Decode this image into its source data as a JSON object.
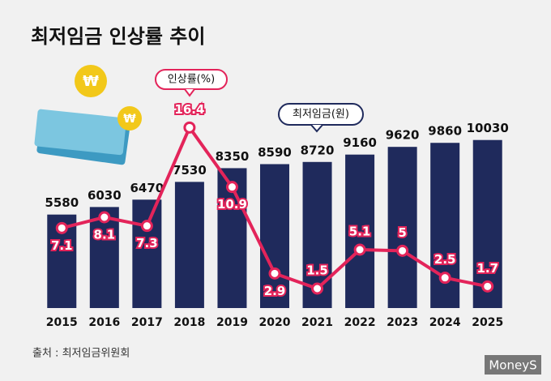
{
  "chart_data": {
    "type": "bar_line",
    "title": "최저임금 인상률 추이",
    "source": "출처 : 최저임금위원회",
    "logo": "MoneyS",
    "categories": [
      "2015",
      "2016",
      "2017",
      "2018",
      "2019",
      "2020",
      "2021",
      "2022",
      "2023",
      "2024",
      "2025"
    ],
    "series": [
      {
        "name": "최저임금(원)",
        "type": "bar",
        "color": "#1f2a5c",
        "values": [
          5580,
          6030,
          6470,
          7530,
          8350,
          8590,
          8720,
          9160,
          9620,
          9860,
          10030
        ]
      },
      {
        "name": "인상률(%)",
        "type": "line",
        "axis": "y2",
        "color": "#e3245a",
        "values": [
          7.1,
          8.1,
          7.3,
          16.4,
          10.9,
          2.9,
          1.5,
          5.1,
          5.0,
          2.5,
          1.7
        ]
      }
    ],
    "ylim": [
      0,
      12000
    ],
    "y2lim": [
      -0.3,
      18.3
    ]
  }
}
